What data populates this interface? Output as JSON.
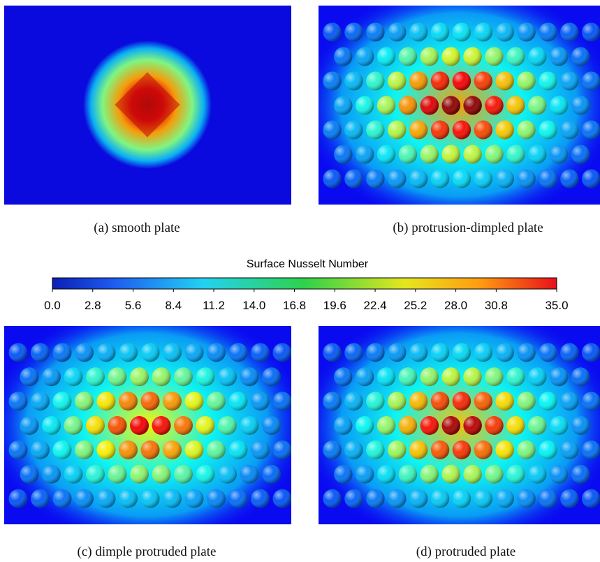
{
  "panels": [
    {
      "caption": "(a) smooth plate"
    },
    {
      "caption": "(b) protrusion-dimpled plate"
    },
    {
      "caption": "(c) dimple protruded plate"
    },
    {
      "caption": "(d) protruded plate"
    }
  ],
  "colorbar": {
    "title": "Surface Nusselt Number",
    "range": [
      0,
      35
    ],
    "ticks": [
      {
        "value": 0,
        "label": "0.0"
      },
      {
        "value": 2.8,
        "label": "2.8"
      },
      {
        "value": 5.6,
        "label": "5.6"
      },
      {
        "value": 8.4,
        "label": "8.4"
      },
      {
        "value": 11.2,
        "label": "11.2"
      },
      {
        "value": 14,
        "label": "14.0"
      },
      {
        "value": 16.8,
        "label": "16.8"
      },
      {
        "value": 19.6,
        "label": "19.6"
      },
      {
        "value": 22.4,
        "label": "22.4"
      },
      {
        "value": 25.2,
        "label": "25.2"
      },
      {
        "value": 28,
        "label": "28.0"
      },
      {
        "value": 30.8,
        "label": "30.8"
      },
      {
        "value": 35,
        "label": "35.0"
      }
    ]
  }
}
